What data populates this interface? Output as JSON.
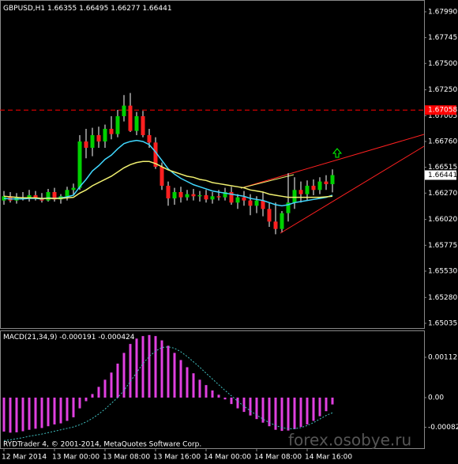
{
  "chart_data": [
    {
      "type": "candlestick",
      "symbol": "GBPUSD,H1",
      "up_color": "#00d000",
      "down_color": "#ff2020",
      "wick_color": "#ffffff",
      "ylim": [
        1.6499,
        1.68102
      ],
      "yticks": [
        {
          "value": 1.6799,
          "label": "1.67990"
        },
        {
          "value": 1.67745,
          "label": "1.67745"
        },
        {
          "value": 1.675,
          "label": "1.67500"
        },
        {
          "value": 1.6725,
          "label": "1.67250"
        },
        {
          "value": 1.67005,
          "label": "1.67005"
        },
        {
          "value": 1.6676,
          "label": "1.66760"
        },
        {
          "value": 1.66515,
          "label": "1.66515"
        },
        {
          "value": 1.6627,
          "label": "1.66270"
        },
        {
          "value": 1.6602,
          "label": "1.66020"
        },
        {
          "value": 1.65775,
          "label": "1.65775"
        },
        {
          "value": 1.6553,
          "label": "1.65530"
        },
        {
          "value": 1.6528,
          "label": "1.65280"
        },
        {
          "value": 1.65035,
          "label": "1.65035"
        }
      ],
      "hline": 1.67058,
      "hline_color": "#ff0000",
      "categories": [
        "12 Mar 2014",
        null,
        null,
        null,
        null,
        null,
        null,
        null,
        "13 Mar 00:00",
        null,
        null,
        null,
        null,
        null,
        null,
        null,
        "13 Mar 08:00",
        null,
        null,
        null,
        null,
        null,
        null,
        null,
        "13 Mar 16:00",
        null,
        null,
        null,
        null,
        null,
        null,
        null,
        "14 Mar 00:00",
        null,
        null,
        null,
        null,
        null,
        null,
        null,
        "14 Mar 08:00",
        null,
        null,
        null,
        null,
        null,
        null,
        null,
        "14 Mar 16:00",
        null,
        null,
        null,
        null
      ],
      "open": [
        1.662,
        1.6624,
        1.662,
        1.6623,
        1.6622,
        1.6625,
        1.6622,
        1.662,
        1.6628,
        1.6621,
        1.6624,
        1.663,
        1.6632,
        1.6676,
        1.667,
        1.6682,
        1.6676,
        1.6688,
        1.6683,
        1.67,
        1.671,
        1.6686,
        1.67,
        1.6682,
        1.6675,
        1.6652,
        1.6634,
        1.6622,
        1.6628,
        1.6623,
        1.6626,
        1.6624,
        1.6625,
        1.6621,
        1.6624,
        1.6623,
        1.6628,
        1.6618,
        1.6623,
        1.662,
        1.6615,
        1.662,
        1.6612,
        1.66,
        1.6593,
        1.6608,
        1.6618,
        1.663,
        1.6626,
        1.6634,
        1.663,
        1.6638,
        1.66355
      ],
      "high": [
        1.6629,
        1.6628,
        1.6627,
        1.6628,
        1.663,
        1.6629,
        1.6627,
        1.6631,
        1.6632,
        1.6626,
        1.6633,
        1.6636,
        1.6682,
        1.6688,
        1.6689,
        1.669,
        1.6692,
        1.67,
        1.6706,
        1.672,
        1.6722,
        1.6704,
        1.6705,
        1.6688,
        1.668,
        1.6656,
        1.6638,
        1.6632,
        1.6633,
        1.663,
        1.6631,
        1.6629,
        1.663,
        1.6628,
        1.663,
        1.6632,
        1.6633,
        1.6626,
        1.6629,
        1.6626,
        1.6624,
        1.6628,
        1.6618,
        1.6618,
        1.661,
        1.6646,
        1.6642,
        1.6638,
        1.6639,
        1.664,
        1.6642,
        1.6644,
        1.66495
      ],
      "low": [
        1.6616,
        1.6618,
        1.6617,
        1.662,
        1.6619,
        1.662,
        1.6618,
        1.6619,
        1.6619,
        1.6617,
        1.662,
        1.6625,
        1.663,
        1.666,
        1.6662,
        1.667,
        1.667,
        1.6678,
        1.668,
        1.6695,
        1.6685,
        1.6682,
        1.668,
        1.667,
        1.665,
        1.663,
        1.6615,
        1.6616,
        1.6618,
        1.662,
        1.662,
        1.6619,
        1.6618,
        1.6617,
        1.662,
        1.662,
        1.6616,
        1.6612,
        1.6615,
        1.6606,
        1.6608,
        1.6605,
        1.6595,
        1.6588,
        1.659,
        1.66,
        1.6612,
        1.6618,
        1.662,
        1.6625,
        1.6626,
        1.663,
        1.66277
      ],
      "close": [
        1.6624,
        1.662,
        1.6623,
        1.6622,
        1.6625,
        1.6622,
        1.662,
        1.6628,
        1.6621,
        1.6624,
        1.663,
        1.6632,
        1.6676,
        1.667,
        1.6682,
        1.6676,
        1.6688,
        1.6683,
        1.67,
        1.671,
        1.6686,
        1.67,
        1.6682,
        1.6675,
        1.6652,
        1.6634,
        1.6622,
        1.6628,
        1.6623,
        1.6626,
        1.6624,
        1.6625,
        1.6621,
        1.6624,
        1.6623,
        1.6628,
        1.6618,
        1.6623,
        1.662,
        1.6615,
        1.662,
        1.6612,
        1.66,
        1.6593,
        1.6608,
        1.6618,
        1.663,
        1.6626,
        1.6634,
        1.663,
        1.6638,
        1.66355,
        1.66441
      ],
      "series": [
        {
          "color": "#40d8ff",
          "values": [
            1.6622,
            1.66215,
            1.66215,
            1.66215,
            1.6622,
            1.6622,
            1.66215,
            1.66225,
            1.6622,
            1.66225,
            1.66235,
            1.6625,
            1.6633,
            1.664,
            1.6648,
            1.6653,
            1.6659,
            1.6663,
            1.6669,
            1.6674,
            1.6676,
            1.6677,
            1.6676,
            1.6673,
            1.6666,
            1.6658,
            1.665,
            1.6645,
            1.6641,
            1.6638,
            1.6635,
            1.6633,
            1.6631,
            1.6629,
            1.6628,
            1.6627,
            1.6626,
            1.6625,
            1.6624,
            1.6622,
            1.6621,
            1.662,
            1.6618,
            1.6616,
            1.6615,
            1.6616,
            1.6618,
            1.6619,
            1.662,
            1.6621,
            1.6622,
            1.6623,
            1.6625
          ]
        },
        {
          "color": "#f0f070",
          "values": [
            1.6624,
            1.66235,
            1.6623,
            1.66225,
            1.66225,
            1.66225,
            1.6622,
            1.6622,
            1.6622,
            1.6622,
            1.66225,
            1.6623,
            1.6627,
            1.663,
            1.6634,
            1.6637,
            1.664,
            1.6643,
            1.6647,
            1.6651,
            1.6654,
            1.6656,
            1.6657,
            1.6657,
            1.6655,
            1.6652,
            1.6649,
            1.6647,
            1.6645,
            1.6643,
            1.6642,
            1.664,
            1.6639,
            1.6637,
            1.6636,
            1.6635,
            1.6634,
            1.6633,
            1.6632,
            1.663,
            1.6629,
            1.6628,
            1.6626,
            1.6625,
            1.6624,
            1.6623,
            1.6623,
            1.6623,
            1.6623,
            1.6623,
            1.6623,
            1.66235,
            1.6624
          ]
        }
      ]
    },
    {
      "type": "macd",
      "title": "MACD(21,34,9)",
      "ylim": [
        -0.001414,
        0.001878
      ],
      "yticks": [
        0.001127,
        {
          "value": 0,
          "label": "0.00"
        },
        -0.000828
      ],
      "series": [
        {
          "color": "#e040e0",
          "values": [
            -0.00095,
            -0.00098,
            -0.00097,
            -0.00094,
            -0.0009,
            -0.00087,
            -0.00085,
            -0.0008,
            -0.00075,
            -0.00072,
            -0.00065,
            -0.00055,
            -0.0003,
            -0.0001,
            0.0001,
            0.0003,
            0.0005,
            0.0007,
            0.00095,
            0.00125,
            0.0015,
            0.00165,
            0.00172,
            0.00175,
            0.00172,
            0.0016,
            0.00145,
            0.00125,
            0.00105,
            0.00085,
            0.00068,
            0.0005,
            0.00035,
            0.0002,
            8e-05,
            -5e-05,
            -0.00018,
            -0.0003,
            -0.0004,
            -0.0005,
            -0.0006,
            -0.0007,
            -0.0008,
            -0.0009,
            -0.00093,
            -0.00092,
            -0.00088,
            -0.00082,
            -0.00075,
            -0.00065,
            -0.00052,
            -0.00038,
            -0.000191
          ]
        },
        {
          "color": "#40c0c0",
          "values": [
            -0.0012,
            -0.00118,
            -0.00115,
            -0.00112,
            -0.00108,
            -0.00105,
            -0.00102,
            -0.00098,
            -0.00094,
            -0.0009,
            -0.00086,
            -0.00082,
            -0.00076,
            -0.00068,
            -0.00058,
            -0.00046,
            -0.00032,
            -0.00016,
            0,
            0.0002,
            0.00045,
            0.0007,
            0.00095,
            0.00115,
            0.0013,
            0.0014,
            0.00142,
            0.00138,
            0.00128,
            0.00115,
            0.001,
            0.00085,
            0.00068,
            0.00052,
            0.00036,
            0.0002,
            5e-05,
            -0.0001,
            -0.00024,
            -0.00037,
            -0.00049,
            -0.0006,
            -0.0007,
            -0.00078,
            -0.00084,
            -0.00087,
            -0.00087,
            -0.00084,
            -0.00078,
            -0.0007,
            -0.0006,
            -0.0005,
            -0.000424
          ]
        }
      ]
    }
  ],
  "footer": {
    "copyright": "RYDTrader 4, © 2001-2014, MetaQuotes Software Corp.",
    "watermark": "forex.osobye.ru"
  }
}
